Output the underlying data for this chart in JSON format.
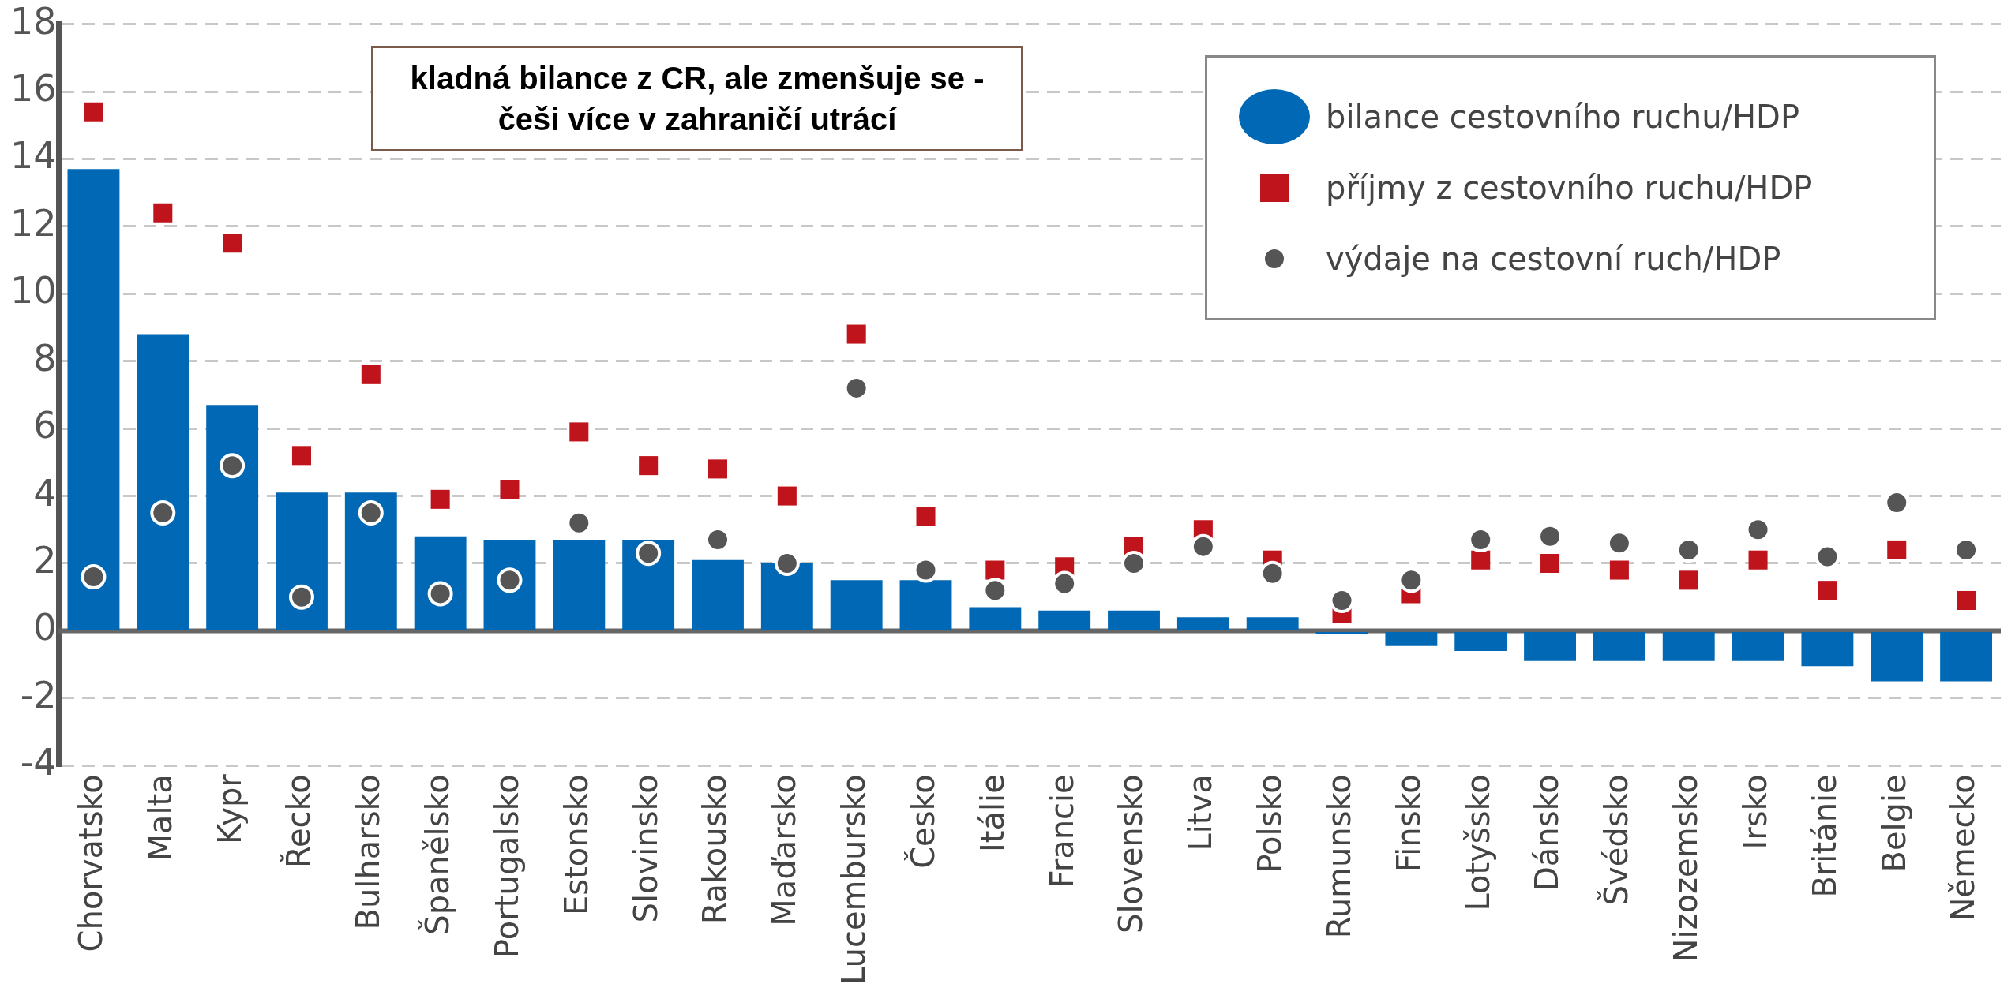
{
  "chart_data": {
    "type": "bar",
    "categories": [
      "Chorvatsko",
      "Malta",
      "Kypr",
      "Řecko",
      "Bulharsko",
      "Španělsko",
      "Portugalsko",
      "Estonsko",
      "Slovinsko",
      "Rakousko",
      "Maďarsko",
      "Lucembursko",
      "Česko",
      "Itálie",
      "Francie",
      "Slovensko",
      "Litva",
      "Polsko",
      "Rumunsko",
      "Finsko",
      "Lotyšsko",
      "Dánsko",
      "Švédsko",
      "Nizozemsko",
      "Irsko",
      "Británie",
      "Belgie",
      "Německo"
    ],
    "series": [
      {
        "name": "bilance cestovního ruchu/HDP",
        "color": "#0068b4",
        "values": [
          13.7,
          8.8,
          6.7,
          4.1,
          4.1,
          2.8,
          2.7,
          2.7,
          2.7,
          2.1,
          2.0,
          1.5,
          1.5,
          0.7,
          0.6,
          0.6,
          0.4,
          0.4,
          -0.1,
          -0.45,
          -0.6,
          -0.9,
          -0.9,
          -0.9,
          -0.9,
          -1.05,
          -1.5,
          -1.5
        ]
      },
      {
        "name": "příjmy z cestovního ruchu/HDP",
        "type": "scatter",
        "marker": "square",
        "color": "#c0141c",
        "values": [
          15.4,
          12.4,
          11.5,
          5.2,
          7.6,
          3.9,
          4.2,
          5.9,
          4.9,
          4.8,
          4.0,
          8.8,
          3.4,
          1.8,
          1.9,
          2.5,
          3.0,
          2.1,
          0.5,
          1.1,
          2.1,
          2.0,
          1.8,
          1.5,
          2.1,
          1.2,
          2.4,
          0.9
        ]
      },
      {
        "name": "výdaje na cestovní ruch/HDP",
        "type": "scatter",
        "marker": "circle",
        "color": "#555555",
        "values": [
          1.6,
          3.5,
          4.9,
          1.0,
          3.5,
          1.1,
          1.5,
          3.2,
          2.3,
          2.7,
          2.0,
          7.2,
          1.8,
          1.2,
          1.4,
          2.0,
          2.5,
          1.7,
          0.9,
          1.5,
          2.7,
          2.8,
          2.6,
          2.4,
          3.0,
          2.2,
          3.8,
          2.4
        ]
      }
    ],
    "ylim": [
      -4,
      18
    ],
    "yticks": [
      -4,
      -2,
      0,
      2,
      4,
      6,
      8,
      10,
      12,
      14,
      16,
      18
    ],
    "grid": "y",
    "legend": "top right",
    "ref_lines": [
      {
        "axis": "y",
        "value": 0,
        "color": "#666666"
      }
    ],
    "annotations": [
      "kladná bilance z CR, ale zmenšuje se - češi více v zahraničí utrácí"
    ]
  }
}
